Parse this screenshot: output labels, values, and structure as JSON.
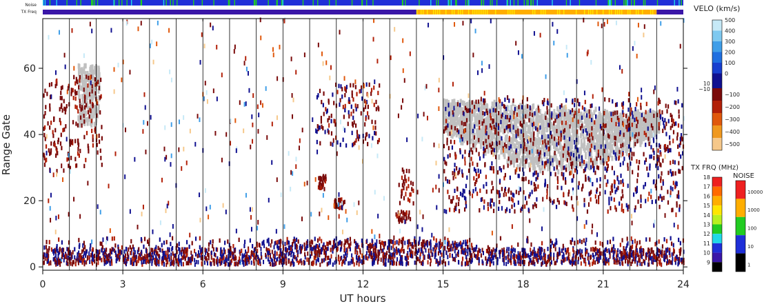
{
  "chart_data": {
    "type": "heatmap",
    "xlabel": "UT hours",
    "ylabel": "Range Gate",
    "xlim": [
      0,
      24
    ],
    "ylim": [
      -1,
      75
    ],
    "xticks": [
      "0",
      "3",
      "6",
      "9",
      "12",
      "15",
      "18",
      "21",
      "24"
    ],
    "yticks": [
      "0",
      "20",
      "40",
      "60"
    ],
    "hour_markers": [
      1,
      2,
      3,
      4,
      5,
      6,
      7,
      8,
      9,
      10,
      11,
      12,
      13,
      14,
      15,
      16,
      17,
      18,
      19,
      20,
      21,
      22,
      23
    ],
    "strips": {
      "noise_label": "Noise",
      "freq_label": "TX Freq",
      "freq_segments": [
        {
          "from": 0,
          "to": 14,
          "level": "10"
        },
        {
          "from": 14,
          "to": 23,
          "level": "15-16"
        },
        {
          "from": 23,
          "to": 24,
          "level": "10"
        }
      ]
    },
    "velocity_regions": [
      {
        "t0": 0.0,
        "t1": 2.2,
        "g0": 28,
        "g1": 57,
        "sign": "negative"
      },
      {
        "t0": 1.3,
        "t1": 2.1,
        "g0": 42,
        "g1": 60,
        "sign": "ground"
      },
      {
        "t0": 10.2,
        "t1": 12.6,
        "g0": 36,
        "g1": 55,
        "sign": "mixed"
      },
      {
        "t0": 10.3,
        "t1": 10.6,
        "g0": 22,
        "g1": 27,
        "sign": "negative"
      },
      {
        "t0": 10.9,
        "t1": 11.3,
        "g0": 17,
        "g1": 20,
        "sign": "negative"
      },
      {
        "t0": 13.3,
        "t1": 13.9,
        "g0": 18,
        "g1": 29,
        "sign": "negative"
      },
      {
        "t0": 13.2,
        "t1": 13.8,
        "g0": 13,
        "g1": 16,
        "sign": "negative"
      },
      {
        "t0": 15.0,
        "t1": 23.1,
        "g0": 27,
        "g1": 50,
        "sign": "ground"
      },
      {
        "t0": 15.0,
        "t1": 24.0,
        "g0": 16,
        "g1": 50,
        "sign": "mixed"
      },
      {
        "t0": 0.0,
        "t1": 24.0,
        "g0": 0,
        "g1": 8,
        "sign": "mixed"
      }
    ]
  },
  "legend": {
    "velo_title": "VELO (km/s)",
    "velo_positive": [
      "500",
      "400",
      "300",
      "200",
      "100",
      "0"
    ],
    "velo_split": [
      "10",
      "−10"
    ],
    "velo_negative": [
      "−100",
      "−200",
      "−300",
      "−400",
      "−500"
    ],
    "txfrq_title": "TX FRQ (MHz)",
    "txfrq_ticks": [
      "18",
      "17",
      "16",
      "15",
      "14",
      "13",
      "12",
      "11",
      "10",
      "9"
    ],
    "noise_title": "NOISE",
    "noise_ticks": [
      "10000",
      "1000",
      "100",
      "10",
      "1"
    ],
    "colors": {
      "velo_pos": [
        "#c6e9f7",
        "#7fc9f0",
        "#3f9ee8",
        "#1f6fe0",
        "#173fcf",
        "#101090"
      ],
      "velo_neg": [
        "#7a0a0a",
        "#b22008",
        "#e0580c",
        "#f0981e",
        "#f6c88a"
      ],
      "ground": "#c0c0c0",
      "txfrq": [
        "#ee2020",
        "#ff6a00",
        "#ffae00",
        "#ffe600",
        "#b8f020",
        "#22cc22",
        "#20d8e8",
        "#1f2fd8",
        "#3a16a8",
        "#000000"
      ],
      "noise": [
        "#ee2020",
        "#ffae00",
        "#22cc22",
        "#1f2fd8",
        "#000000"
      ]
    }
  }
}
